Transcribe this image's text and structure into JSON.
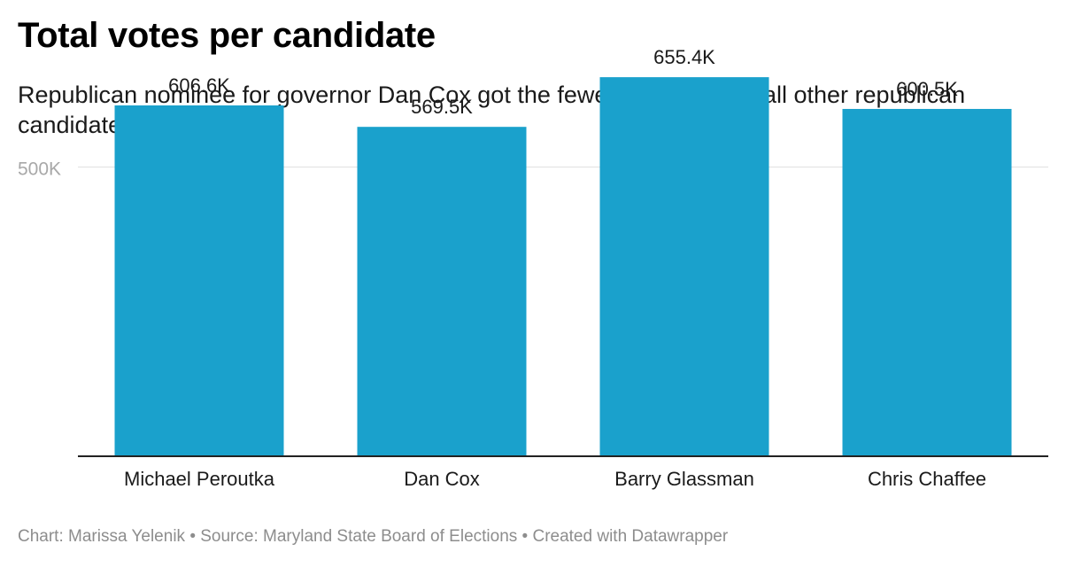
{
  "title": "Total votes per candidate",
  "subtitle": "Republican nominee for governor Dan Cox got the fewest votes out of all other republican candidates in the state.",
  "footer": "Chart: Marissa Yelenik • Source: Maryland State Board of Elections • Created with Datawrapper",
  "colors": {
    "bar": "#1aa1cc",
    "gridline": "#e3e3e3",
    "axis": "#222222",
    "tick_label": "#a8a8a8"
  },
  "chart_data": {
    "type": "bar",
    "title": "Total votes per candidate",
    "categories": [
      "Michael Peroutka",
      "Dan Cox",
      "Barry Glassman",
      "Chris Chaffee"
    ],
    "values": [
      606600,
      569500,
      655400,
      600500
    ],
    "value_labels": [
      "606.6K",
      "569.5K",
      "655.4K",
      "600.5K"
    ],
    "ylim": [
      0,
      700000
    ],
    "y_ticks": [
      {
        "value": 500000,
        "label": "500K"
      }
    ],
    "xlabel": "",
    "ylabel": "",
    "grid": true
  }
}
